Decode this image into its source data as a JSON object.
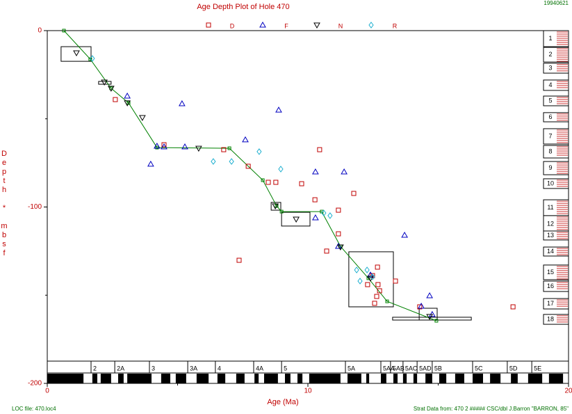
{
  "chart_data": {
    "type": "scatter",
    "title": "Age Depth Plot of Hole 470",
    "date": "19940621",
    "xlabel": "Age (Ma)",
    "ylabel": "Depth * mbsf",
    "xlim": [
      0,
      20
    ],
    "ylim": [
      -200,
      0
    ],
    "xticks": [
      0,
      10,
      20
    ],
    "yticks": [
      0,
      -100,
      -200
    ],
    "xminor": [
      5,
      15
    ],
    "yminor": [
      -50,
      -150
    ],
    "footer_left": "LOC file: 470.loc4",
    "footer_right": "Strat Data from: 470 2 ##### CSC/dbl J.Barron \"BARRON, 85\"",
    "series": [
      {
        "name": "D",
        "marker": "square",
        "color": "#c00000",
        "x": [
          2.61,
          4.48,
          6.77,
          7.71,
          8.48,
          8.77,
          9.76,
          10.27,
          10.45,
          11.17,
          11.17,
          10.72,
          11.76,
          7.36,
          12.67,
          12.29,
          12.69,
          12.75,
          12.64,
          12.56,
          13.36,
          14.29,
          17.87,
          12.48
        ],
        "y": [
          -39.1,
          -64.7,
          -67.5,
          -76.9,
          -86.0,
          -86.0,
          -86.8,
          -95.9,
          -67.5,
          -101.8,
          -115.2,
          -125.0,
          -92.3,
          -130.2,
          -134.1,
          -144.0,
          -144.0,
          -147.5,
          -150.7,
          -154.6,
          -142.0,
          -156.6,
          -156.6,
          -138.9
        ]
      },
      {
        "name": "F",
        "marker": "triangle-up",
        "color": "#0000c0",
        "x": [
          3.07,
          3.97,
          4.21,
          4.48,
          5.17,
          5.28,
          7.6,
          8.88,
          10.29,
          10.29,
          11.39,
          11.17,
          12.4,
          13.71,
          14.35,
          14.67,
          14.77
        ],
        "y": [
          -37.1,
          -75.7,
          -65.5,
          -65.9,
          -41.4,
          -65.9,
          -61.9,
          -45.0,
          -80.1,
          -106.1,
          -80.1,
          -122.3,
          -138.5,
          -116.0,
          -156.2,
          -150.3,
          -160.9
        ]
      },
      {
        "name": "N",
        "marker": "triangle-down",
        "color": "#000000",
        "x": [
          1.12,
          2.19,
          2.45,
          3.07,
          3.65,
          5.81,
          8.75,
          9.55,
          11.25,
          12.4,
          14.67
        ],
        "y": [
          -12.6,
          -29.2,
          -32.7,
          -41.0,
          -49.3,
          -66.7,
          -99.4,
          -106.9,
          -122.7,
          -140.4,
          -162.1
        ]
      },
      {
        "name": "R",
        "marker": "diamond",
        "color": "#20b0d0",
        "x": [
          1.73,
          6.37,
          7.07,
          8.13,
          8.96,
          10.61,
          10.85,
          11.87,
          12.0,
          12.27,
          12.48
        ],
        "y": [
          -15.8,
          -74.2,
          -74.2,
          -68.6,
          -78.5,
          -103.4,
          -104.9,
          -135.7,
          -142.0,
          -135.7,
          -139.6
        ]
      }
    ],
    "loc_line": {
      "color": "#008000",
      "x": [
        0.64,
        1.65,
        2.45,
        3.12,
        4.21,
        6.99,
        8.27,
        8.8,
        8.99,
        10.53,
        11.25,
        12.32,
        13.04,
        14.93
      ],
      "y": [
        0,
        -16.2,
        -32.7,
        -41.0,
        -66.3,
        -66.7,
        -84.8,
        -99.4,
        -102.6,
        -102.6,
        -122.3,
        -140.4,
        -153.5,
        -164.5
      ]
    },
    "boxes": [
      {
        "x": [
          0.53,
          1.68
        ],
        "y": [
          -9.1,
          -17.4
        ]
      },
      {
        "x": [
          1.97,
          2.45
        ],
        "y": [
          -28.8,
          -30.4
        ]
      },
      {
        "x": [
          8.59,
          8.96
        ],
        "y": [
          -97.4,
          -101.8
        ]
      },
      {
        "x": [
          8.99,
          10.08
        ],
        "y": [
          -103.0,
          -110.8
        ]
      },
      {
        "x": [
          11.57,
          13.28
        ],
        "y": [
          -125.4,
          -156.6
        ]
      },
      {
        "x": [
          14.27,
          14.96
        ],
        "y": [
          -157.4,
          -164.1
        ]
      },
      {
        "x": [
          13.25,
          16.27
        ],
        "y": [
          -162.5,
          -164.1
        ]
      }
    ],
    "cores": [
      {
        "label": "1",
        "top": 0,
        "bottom": -9.1
      },
      {
        "label": "2",
        "top": -9.5,
        "bottom": -17.8
      },
      {
        "label": "3",
        "top": -18.5,
        "bottom": -24.1
      },
      {
        "label": "4",
        "top": -28.0,
        "bottom": -33.9
      },
      {
        "label": "5",
        "top": -37.1,
        "bottom": -42.6
      },
      {
        "label": "6",
        "top": -46.5,
        "bottom": -51.7
      },
      {
        "label": "7",
        "top": -55.6,
        "bottom": -64.3
      },
      {
        "label": "8",
        "top": -65.1,
        "bottom": -72.2
      },
      {
        "label": "9",
        "top": -74.2,
        "bottom": -81.7
      },
      {
        "label": "10",
        "top": -84.0,
        "bottom": -89.5
      },
      {
        "label": "11",
        "top": -95.9,
        "bottom": -104.9
      },
      {
        "label": "12",
        "top": -104.9,
        "bottom": -114.4
      },
      {
        "label": "13",
        "top": -113.6,
        "bottom": -118.7
      },
      {
        "label": "14",
        "top": -122.7,
        "bottom": -127.8
      },
      {
        "label": "15",
        "top": -132.9,
        "bottom": -141.2
      },
      {
        "label": "16",
        "top": -142.0,
        "bottom": -147.9
      },
      {
        "label": "17",
        "top": -151.9,
        "bottom": -157.8
      },
      {
        "label": "18",
        "top": -160.9,
        "bottom": -166.5
      }
    ],
    "chrons": [
      {
        "label": "2",
        "start": 1.68
      },
      {
        "label": "2A",
        "start": 2.59
      },
      {
        "label": "3",
        "start": 3.92
      },
      {
        "label": "3A",
        "start": 5.39
      },
      {
        "label": "4",
        "start": 6.45
      },
      {
        "label": "4A",
        "start": 7.92
      },
      {
        "label": "5",
        "start": 8.99
      },
      {
        "label": "5A",
        "start": 11.44
      },
      {
        "label": "5AA",
        "start": 12.8
      },
      {
        "label": "5AB",
        "start": 13.17
      },
      {
        "label": "5AC",
        "start": 13.65
      },
      {
        "label": "5AD",
        "start": 14.19
      },
      {
        "label": "5B",
        "start": 14.77
      },
      {
        "label": "5C",
        "start": 16.32
      },
      {
        "label": "5D",
        "start": 17.65
      },
      {
        "label": "5E",
        "start": 18.59
      }
    ],
    "polarity_normal": [
      [
        0,
        1.39
      ],
      [
        1.73,
        1.92
      ],
      [
        2.05,
        2.45
      ],
      [
        2.72,
        2.93
      ],
      [
        3.07,
        4.0
      ],
      [
        4.37,
        4.72
      ],
      [
        4.93,
        5.33
      ],
      [
        5.73,
        6.19
      ],
      [
        6.53,
        6.83
      ],
      [
        7.25,
        7.57
      ],
      [
        7.95,
        8.11
      ],
      [
        8.32,
        8.85
      ],
      [
        9.12,
        9.33
      ],
      [
        9.6,
        9.79
      ],
      [
        10.05,
        11.25
      ],
      [
        11.52,
        12.05
      ],
      [
        12.24,
        12.35
      ],
      [
        12.8,
        13.01
      ],
      [
        13.28,
        13.44
      ],
      [
        13.65,
        13.79
      ],
      [
        14.05,
        14.19
      ],
      [
        14.51,
        14.77
      ],
      [
        15.04,
        15.31
      ],
      [
        15.65,
        16.0
      ],
      [
        16.32,
        16.72
      ],
      [
        16.99,
        17.39
      ],
      [
        17.79,
        18.05
      ],
      [
        18.45,
        18.99
      ],
      [
        19.25,
        19.79
      ]
    ]
  }
}
